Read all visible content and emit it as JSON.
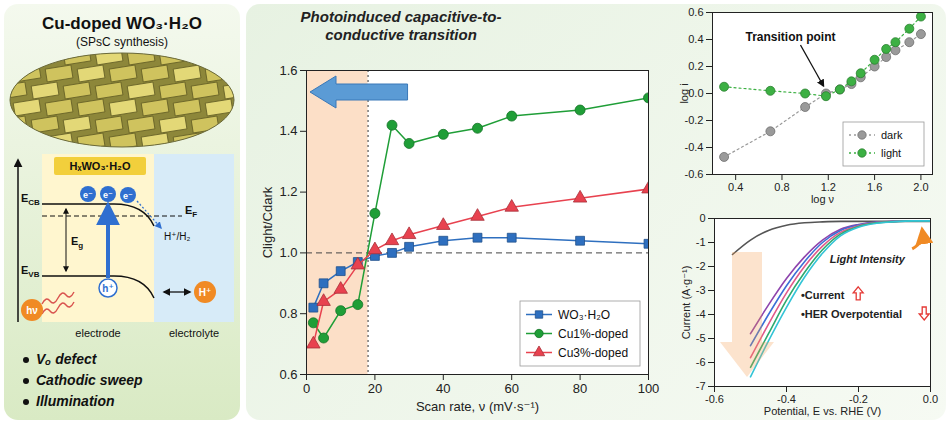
{
  "schematic": {
    "title": "Cu-doped WO₃·H₂O",
    "subtitle": "(SPsC synthesis)",
    "layer_label": "HₓWO₃·H₂O",
    "cb_label": {
      "text": "E",
      "sub": "CB"
    },
    "vb_label": {
      "text": "E",
      "sub": "VB"
    },
    "fermi_label": {
      "text": "E",
      "sub": "F"
    },
    "gap_label": {
      "text": "E",
      "sub": "g"
    },
    "electron": "e⁻",
    "hole": "h⁺",
    "proton": "H⁺",
    "redox": "H⁺/H₂",
    "photon": "hν",
    "electrode": "electrode",
    "electrolyte": "electrolyte",
    "bullets": [
      "Vₒ defect",
      "Cathodic sweep",
      "Illumination"
    ]
  },
  "chart_data": [
    {
      "type": "line",
      "title": "Photoinduced capacitive-to-conductive transition",
      "xlabel": "Scan rate, ν (mV·s⁻¹)",
      "ylabel": "Clight/Cdark",
      "x": [
        2,
        5,
        10,
        15,
        20,
        25,
        30,
        40,
        50,
        60,
        80,
        100
      ],
      "xlim": [
        0,
        100
      ],
      "xticks": [
        0,
        20,
        40,
        60,
        80,
        100
      ],
      "ylim": [
        0.6,
        1.6
      ],
      "yticks": [
        0.6,
        0.8,
        {
          "value": 1,
          "label": "1.0"
        },
        1.2,
        1.4,
        1.6
      ],
      "legend": "bottom-right",
      "line_style": "solid",
      "transition_x": 18,
      "reference_y": 1,
      "series": [
        {
          "name": "WO₃·H₂O",
          "color": "#2e6fbf",
          "marker": "square",
          "values": [
            0.82,
            0.9,
            0.94,
            0.97,
            0.99,
            1.0,
            1.02,
            1.04,
            1.05,
            1.05,
            1.04,
            1.03
          ]
        },
        {
          "name": "Cu1%-doped",
          "color": "#1f9e37",
          "marker": "circle",
          "values": [
            0.77,
            0.72,
            0.81,
            0.83,
            1.13,
            1.42,
            1.36,
            1.39,
            1.41,
            1.45,
            1.47,
            1.51
          ]
        },
        {
          "name": "Cu3%-doped",
          "color": "#e8424f",
          "marker": "triangle",
          "values": [
            0.7,
            0.84,
            0.88,
            0.96,
            1.01,
            1.04,
            1.06,
            1.09,
            1.12,
            1.15,
            1.18,
            1.21
          ]
        }
      ]
    },
    {
      "type": "line",
      "xlabel": "log ν",
      "ylabel": "log i",
      "x": [
        0.3,
        0.7,
        1.0,
        1.18,
        1.3,
        1.4,
        1.48,
        1.6,
        1.7,
        1.78,
        1.9,
        2.0
      ],
      "xlim": [
        0.2,
        2.1
      ],
      "xticks": [
        0.4,
        0.8,
        1.2,
        1.6,
        {
          "value": 2,
          "label": "2.0"
        }
      ],
      "ylim": [
        -0.6,
        0.6
      ],
      "yticks": [
        -0.6,
        -0.4,
        -0.2,
        {
          "value": 0,
          "label": "0.0"
        },
        0.2,
        0.4,
        0.6
      ],
      "legend": "bottom-right",
      "line_style": "dotted",
      "annotations": [
        {
          "text": "Transition point",
          "x": 1.18,
          "y": 0
        }
      ],
      "series": [
        {
          "name": "dark",
          "color": "#9a9a9a",
          "marker": "circle",
          "values": [
            -0.47,
            -0.28,
            -0.1,
            0.0,
            0.03,
            0.07,
            0.12,
            0.2,
            0.27,
            0.32,
            0.38,
            0.44
          ]
        },
        {
          "name": "light",
          "color": "#3cb043",
          "marker": "circle",
          "values": [
            0.05,
            0.02,
            0.0,
            -0.02,
            0.03,
            0.09,
            0.15,
            0.25,
            0.33,
            0.38,
            0.48,
            0.57
          ]
        }
      ]
    },
    {
      "type": "line",
      "xlabel": "Potential, E vs. RHE (V)",
      "ylabel": "Current (A·g⁻¹)",
      "x": [
        -0.55,
        -0.5,
        -0.45,
        -0.4,
        -0.35,
        -0.3,
        -0.25,
        -0.2,
        -0.15,
        -0.1,
        -0.05,
        0
      ],
      "xlim": [
        -0.6,
        0
      ],
      "xticks": [
        -0.6,
        -0.4,
        -0.2,
        {
          "value": 0,
          "label": "0.0"
        }
      ],
      "ylim": [
        -7,
        0
      ],
      "yticks": [
        -7,
        -6,
        -5,
        -4,
        -3,
        -2,
        -1,
        0
      ],
      "line_style": "solid",
      "annotations": [
        {
          "text": "Light Intensity",
          "x": -0.28,
          "y": -1.7
        },
        {
          "text": "•Current",
          "x": -0.36,
          "y": -3.2
        },
        {
          "text": "•HER Overpotential",
          "x": -0.36,
          "y": -4.0
        }
      ],
      "series": [
        {
          "color": "#555555",
          "values": [
            -1.5,
            -0.9,
            -0.5,
            -0.28,
            -0.18,
            -0.14,
            -0.12,
            -0.12,
            -0.12,
            -0.12,
            -0.12,
            -0.12
          ]
        },
        {
          "color": "#8e44ad",
          "values": [
            null,
            -4.8,
            -3.6,
            -2.5,
            -1.6,
            -0.9,
            -0.45,
            -0.25,
            -0.15,
            -0.12,
            -0.1,
            -0.1
          ]
        },
        {
          "color": "#3b6fd6",
          "values": [
            null,
            -5.3,
            -4.0,
            -2.8,
            -1.8,
            -1.0,
            -0.5,
            -0.27,
            -0.16,
            -0.12,
            -0.1,
            -0.1
          ]
        },
        {
          "color": "#e05a8a",
          "values": [
            null,
            -5.8,
            -4.4,
            -3.1,
            -2.0,
            -1.15,
            -0.58,
            -0.3,
            -0.17,
            -0.12,
            -0.1,
            -0.1
          ]
        },
        {
          "color": "#2eaa6e",
          "values": [
            null,
            -6.2,
            -4.8,
            -3.4,
            -2.25,
            -1.3,
            -0.65,
            -0.33,
            -0.18,
            -0.13,
            -0.1,
            -0.1
          ]
        },
        {
          "color": "#33c4d6",
          "values": [
            null,
            -6.6,
            -5.1,
            -3.7,
            -2.45,
            -1.45,
            -0.72,
            -0.36,
            -0.2,
            -0.13,
            -0.1,
            -0.1
          ]
        }
      ]
    }
  ]
}
